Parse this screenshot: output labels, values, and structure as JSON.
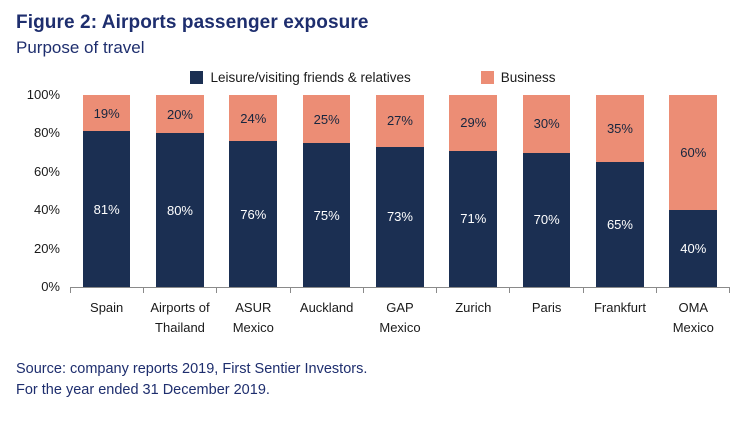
{
  "header": {
    "title": "Figure 2: Airports passenger exposure",
    "subtitle": "Purpose of travel"
  },
  "footer": {
    "source_line1": "Source: company reports 2019, First Sentier Investors.",
    "source_line2": "For the year ended 31 December 2019."
  },
  "colors": {
    "heading": "#1e2e6e",
    "leisure": "#1b2f52",
    "business": "#ec8d75"
  },
  "chart_data": {
    "type": "bar",
    "stacked": true,
    "title": "Purpose of travel",
    "categories": [
      "Spain",
      "Airports of Thailand",
      "ASUR Mexico",
      "Auckland",
      "GAP Mexico",
      "Zurich",
      "Paris",
      "Frankfurt",
      "OMA Mexico"
    ],
    "series": [
      {
        "name": "Leisure/visiting friends & relatives",
        "color": "#1b2f52",
        "values": [
          81,
          80,
          76,
          75,
          73,
          71,
          70,
          65,
          40
        ]
      },
      {
        "name": "Business",
        "color": "#ec8d75",
        "values": [
          19,
          20,
          24,
          25,
          27,
          29,
          30,
          35,
          60
        ]
      }
    ],
    "ylim": [
      0,
      100
    ],
    "yticks": [
      "0%",
      "20%",
      "40%",
      "60%",
      "80%",
      "100%"
    ],
    "grid": false,
    "legend_position": "top"
  }
}
